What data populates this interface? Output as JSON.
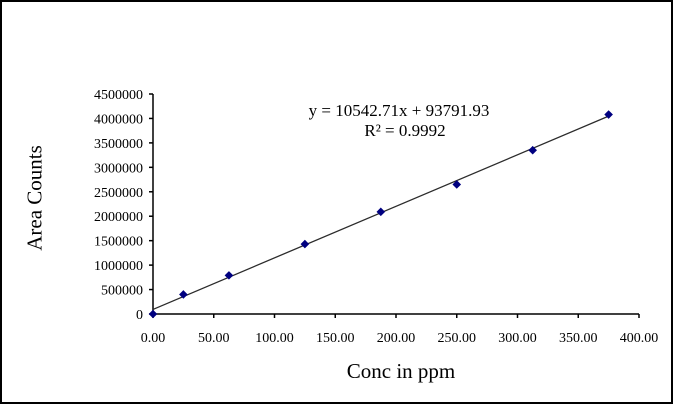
{
  "window": {
    "background": "#ffffff",
    "frame_color": "#000000"
  },
  "chart_data": {
    "type": "scatter",
    "title": "",
    "xlabel": "Conc in ppm",
    "ylabel": "Area Counts",
    "x": [
      0,
      25,
      62.5,
      125,
      187.5,
      250,
      312.5,
      375
    ],
    "y": [
      0,
      400000,
      790000,
      1430000,
      2090000,
      2650000,
      3350000,
      4080000
    ],
    "trendline": {
      "slope": 10542.71,
      "intercept": 93791.93,
      "x_start": 0,
      "x_end": 375
    },
    "equation_line1": "y = 10542.71x + 93791.93",
    "equation_line2": "R² = 0.9992",
    "xlim": [
      0,
      400
    ],
    "ylim": [
      0,
      4500000
    ],
    "x_tick_labels": [
      "0.00",
      "50.00",
      "100.00",
      "150.00",
      "200.00",
      "250.00",
      "300.00",
      "350.00",
      "400.00"
    ],
    "y_tick_labels": [
      "0",
      "500000",
      "1000000",
      "1500000",
      "2000000",
      "2500000",
      "3000000",
      "3500000",
      "4000000",
      "4500000"
    ],
    "grid": false,
    "legend": false,
    "marker_shape": "diamond",
    "marker_color": "#000080",
    "trendline_color": "#2b2b2b",
    "axis_color": "#000000",
    "tick_label_color": "#000000"
  }
}
